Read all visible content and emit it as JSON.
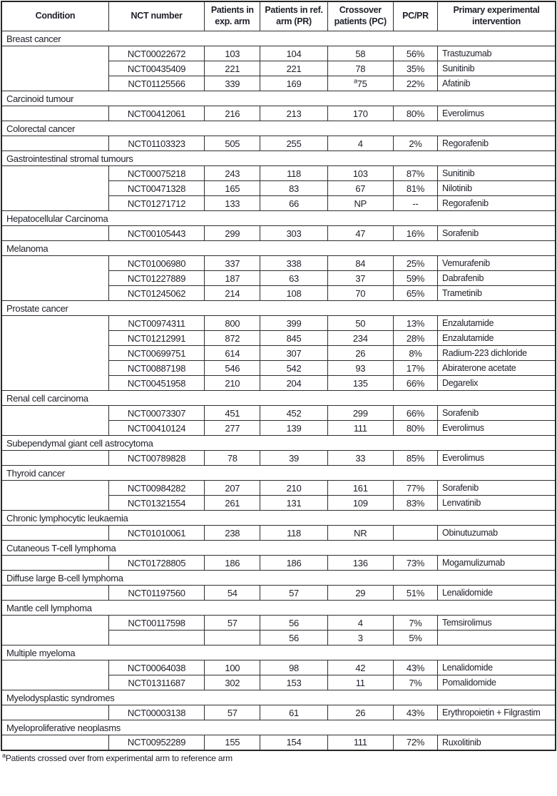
{
  "table": {
    "columns": [
      "Condition",
      "NCT number",
      "Patients in exp. arm",
      "Patients in ref. arm (PR)",
      "Crossover patients (PC)",
      "PC/PR",
      "Primary experimental intervention"
    ],
    "groups": [
      {
        "condition": "Breast cancer",
        "trials": [
          {
            "nct": "NCT00022672",
            "exp": "103",
            "ref": "104",
            "crossover": "58",
            "pcpr": "56%",
            "intervention": "Trastuzumab"
          },
          {
            "nct": "NCT00435409",
            "exp": "221",
            "ref": "221",
            "crossover": "78",
            "pcpr": "35%",
            "intervention": "Sunitinib"
          },
          {
            "nct": "NCT01125566",
            "exp": "339",
            "ref": "169",
            "crossover": "75",
            "crossover_sup": "a",
            "pcpr": "22%",
            "intervention": "Afatinib"
          }
        ]
      },
      {
        "condition": "Carcinoid tumour",
        "trials": [
          {
            "nct": "NCT00412061",
            "exp": "216",
            "ref": "213",
            "crossover": "170",
            "pcpr": "80%",
            "intervention": "Everolimus"
          }
        ]
      },
      {
        "condition": "Colorectal cancer",
        "trials": [
          {
            "nct": "NCT01103323",
            "exp": "505",
            "ref": "255",
            "crossover": "4",
            "pcpr": "2%",
            "intervention": "Regorafenib"
          }
        ]
      },
      {
        "condition": "Gastrointestinal stromal tumours",
        "trials": [
          {
            "nct": "NCT00075218",
            "exp": "243",
            "ref": "118",
            "crossover": "103",
            "pcpr": "87%",
            "intervention": "Sunitinib"
          },
          {
            "nct": "NCT00471328",
            "exp": "165",
            "ref": "83",
            "crossover": "67",
            "pcpr": "81%",
            "intervention": "Nilotinib"
          },
          {
            "nct": "NCT01271712",
            "exp": "133",
            "ref": "66",
            "crossover": "NP",
            "pcpr": "--",
            "intervention": "Regorafenib"
          }
        ]
      },
      {
        "condition": "Hepatocellular Carcinoma",
        "trials": [
          {
            "nct": "NCT00105443",
            "exp": "299",
            "ref": "303",
            "crossover": "47",
            "pcpr": "16%",
            "intervention": "Sorafenib"
          }
        ]
      },
      {
        "condition": "Melanoma",
        "trials": [
          {
            "nct": "NCT01006980",
            "exp": "337",
            "ref": "338",
            "crossover": "84",
            "pcpr": "25%",
            "intervention": "Vemurafenib"
          },
          {
            "nct": "NCT01227889",
            "exp": "187",
            "ref": "63",
            "crossover": "37",
            "pcpr": "59%",
            "intervention": "Dabrafenib"
          },
          {
            "nct": "NCT01245062",
            "exp": "214",
            "ref": "108",
            "crossover": "70",
            "pcpr": "65%",
            "intervention": "Trametinib"
          }
        ]
      },
      {
        "condition": "Prostate cancer",
        "trials": [
          {
            "nct": "NCT00974311",
            "exp": "800",
            "ref": "399",
            "crossover": "50",
            "pcpr": "13%",
            "intervention": "Enzalutamide"
          },
          {
            "nct": "NCT01212991",
            "exp": "872",
            "ref": "845",
            "crossover": "234",
            "pcpr": "28%",
            "intervention": "Enzalutamide"
          },
          {
            "nct": "NCT00699751",
            "exp": "614",
            "ref": "307",
            "crossover": "26",
            "pcpr": "8%",
            "intervention": "Radium-223 dichloride"
          },
          {
            "nct": "NCT00887198",
            "exp": "546",
            "ref": "542",
            "crossover": "93",
            "pcpr": "17%",
            "intervention": "Abiraterone acetate"
          },
          {
            "nct": "NCT00451958",
            "exp": "210",
            "ref": "204",
            "crossover": "135",
            "pcpr": "66%",
            "intervention": "Degarelix"
          }
        ]
      },
      {
        "condition": "Renal cell carcinoma",
        "trials": [
          {
            "nct": "NCT00073307",
            "exp": "451",
            "ref": "452",
            "crossover": "299",
            "pcpr": "66%",
            "intervention": "Sorafenib"
          },
          {
            "nct": "NCT00410124",
            "exp": "277",
            "ref": "139",
            "crossover": "111",
            "pcpr": "80%",
            "intervention": "Everolimus"
          }
        ]
      },
      {
        "condition": "Subependymal giant cell astrocytoma",
        "trials": [
          {
            "nct": "NCT00789828",
            "exp": "78",
            "ref": "39",
            "crossover": "33",
            "pcpr": "85%",
            "intervention": "Everolimus"
          }
        ]
      },
      {
        "condition": "Thyroid cancer",
        "trials": [
          {
            "nct": "NCT00984282",
            "exp": "207",
            "ref": "210",
            "crossover": "161",
            "pcpr": "77%",
            "intervention": "Sorafenib"
          },
          {
            "nct": "NCT01321554",
            "exp": "261",
            "ref": "131",
            "crossover": "109",
            "pcpr": "83%",
            "intervention": "Lenvatinib"
          }
        ]
      },
      {
        "condition": "Chronic lymphocytic leukaemia",
        "trials": [
          {
            "nct": "NCT01010061",
            "exp": "238",
            "ref": "118",
            "crossover": "NR",
            "pcpr": "",
            "intervention": "Obinutuzumab"
          }
        ]
      },
      {
        "condition": "Cutaneous T-cell lymphoma",
        "trials": [
          {
            "nct": "NCT01728805",
            "exp": "186",
            "ref": "186",
            "crossover": "136",
            "pcpr": "73%",
            "intervention": "Mogamulizumab"
          }
        ]
      },
      {
        "condition": "Diffuse large B-cell lymphoma",
        "trials": [
          {
            "nct": "NCT01197560",
            "exp": "54",
            "ref": "57",
            "crossover": "29",
            "pcpr": "51%",
            "intervention": "Lenalidomide"
          }
        ]
      },
      {
        "condition": "Mantle cell lymphoma",
        "trials": [
          {
            "nct": "NCT00117598",
            "exp": "57",
            "ref": "56",
            "crossover": "4",
            "pcpr": "7%",
            "intervention": "Temsirolimus"
          },
          {
            "nct": "",
            "exp": "",
            "ref": "56",
            "crossover": "3",
            "pcpr": "5%",
            "intervention": ""
          }
        ]
      },
      {
        "condition": "Multiple myeloma",
        "trials": [
          {
            "nct": "NCT00064038",
            "exp": "100",
            "ref": "98",
            "crossover": "42",
            "pcpr": "43%",
            "intervention": "Lenalidomide"
          },
          {
            "nct": "NCT01311687",
            "exp": "302",
            "ref": "153",
            "crossover": "11",
            "pcpr": "7%",
            "intervention": "Pomalidomide"
          }
        ]
      },
      {
        "condition": "Myelodysplastic syndromes",
        "trials": [
          {
            "nct": "NCT00003138",
            "exp": "57",
            "ref": "61",
            "crossover": "26",
            "pcpr": "43%",
            "intervention": "Erythropoietin + Filgrastim"
          }
        ]
      },
      {
        "condition": "Myeloproliferative neoplasms",
        "trials": [
          {
            "nct": "NCT00952289",
            "exp": "155",
            "ref": "154",
            "crossover": "111",
            "pcpr": "72%",
            "intervention": "Ruxolitinib"
          }
        ]
      }
    ]
  },
  "footnote": {
    "sup": "a",
    "text": "Patients crossed over from experimental arm to reference arm"
  },
  "colors": {
    "text": "#20222b",
    "border_inner": "#2e2e2e",
    "border_outer": "#262626",
    "background": "#ffffff"
  }
}
